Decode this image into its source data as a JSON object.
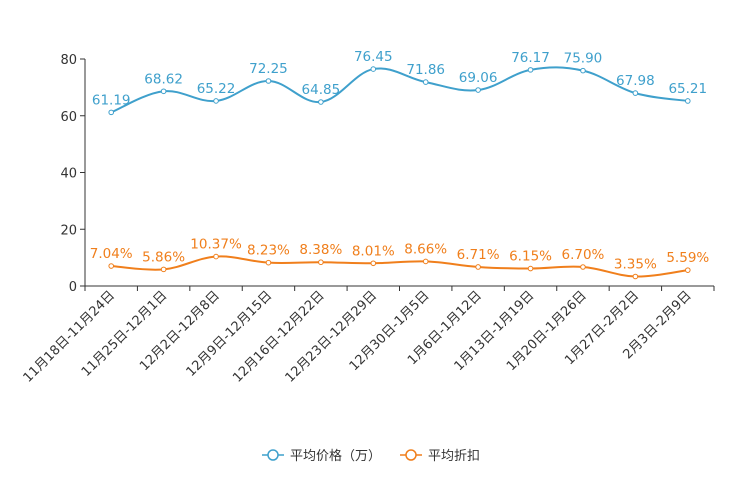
{
  "chart_data": {
    "type": "line",
    "title": "",
    "xlabel": "",
    "ylabel": "",
    "ylim": [
      0,
      80
    ],
    "yticks": [
      0,
      20,
      40,
      60,
      80
    ],
    "categories": [
      "11月18日-11月24日",
      "11月25日-12月1日",
      "12月2日-12月8日",
      "12月9日-12月15日",
      "12月16日-12月22日",
      "12月23日-12月29日",
      "12月30日-1月5日",
      "1月6日-1月12日",
      "1月13日-1月19日",
      "1月20日-1月26日",
      "1月27日-2月2日",
      "2月3日-2月9日"
    ],
    "series": [
      {
        "name": "平均价格（万）",
        "color": "#3fa0cc",
        "values": [
          61.19,
          68.62,
          65.22,
          72.25,
          64.85,
          76.45,
          71.86,
          69.06,
          76.17,
          75.9,
          67.98,
          65.21
        ],
        "labels": [
          "61.19",
          "68.62",
          "65.22",
          "72.25",
          "64.85",
          "76.45",
          "71.86",
          "69.06",
          "76.17",
          "75.90",
          "67.98",
          "65.21"
        ]
      },
      {
        "name": "平均折扣",
        "color": "#f07f1c",
        "values": [
          7.04,
          5.86,
          10.37,
          8.23,
          8.38,
          8.01,
          8.66,
          6.71,
          6.15,
          6.7,
          3.35,
          5.59
        ],
        "labels": [
          "7.04%",
          "5.86%",
          "10.37%",
          "8.23%",
          "8.38%",
          "8.01%",
          "8.66%",
          "6.71%",
          "6.15%",
          "6.70%",
          "3.35%",
          "5.59%"
        ]
      }
    ],
    "legend_position": "bottom-center"
  }
}
